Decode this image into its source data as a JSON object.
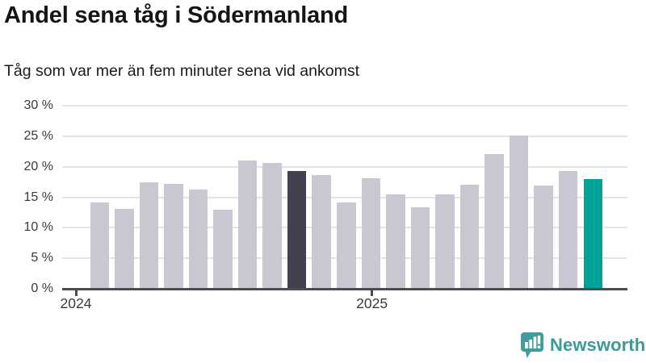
{
  "header": {
    "title": "Andel sena tåg i Södermanland",
    "subtitle": "Tåg som var mer än fem minuter sena vid ankomst"
  },
  "chart_data": {
    "type": "bar",
    "title": "Andel sena tåg i Södermanland",
    "subtitle": "Tåg som var mer än fem minuter sena vid ankomst",
    "unit": "%",
    "categories": [
      "2024-01",
      "2024-02",
      "2024-03",
      "2024-04",
      "2024-05",
      "2024-06",
      "2024-07",
      "2024-08",
      "2024-09",
      "2024-10",
      "2024-11",
      "2024-12",
      "2025-01",
      "2025-02",
      "2025-03",
      "2025-04",
      "2025-05",
      "2025-06",
      "2025-07",
      "2025-08",
      "2025-09"
    ],
    "values": [
      14.2,
      13.1,
      17.5,
      17.2,
      16.3,
      13.0,
      21.0,
      20.6,
      19.3,
      18.7,
      14.2,
      18.1,
      15.4,
      13.3,
      15.4,
      17.1,
      22.1,
      25.1,
      16.9,
      19.3,
      18.0
    ],
    "ylim": [
      0,
      30
    ],
    "y_ticks": [
      {
        "value": 0,
        "label": "0 %"
      },
      {
        "value": 5,
        "label": "5 %"
      },
      {
        "value": 10,
        "label": "10 %"
      },
      {
        "value": 15,
        "label": "15 %"
      },
      {
        "value": 20,
        "label": "20 %"
      },
      {
        "value": 25,
        "label": "25 %"
      },
      {
        "value": 30,
        "label": "30 %"
      }
    ],
    "x_ticks": [
      {
        "label": "2024",
        "bar_index": 0
      },
      {
        "label": "2025",
        "bar_index": 12
      }
    ],
    "grid": true,
    "legend": "none",
    "colors": {
      "default": "#c9c7d2",
      "highlight_previous_year": "#434050",
      "highlight_latest": "#00a39c",
      "axis": "#4d4d4d",
      "gridline": "#e4e4e7"
    },
    "highlight_previous_year_index": 8,
    "highlight_latest_index": 20
  },
  "footer": {
    "brand": "Newsworthy",
    "brand_color": "#3a9b97"
  }
}
